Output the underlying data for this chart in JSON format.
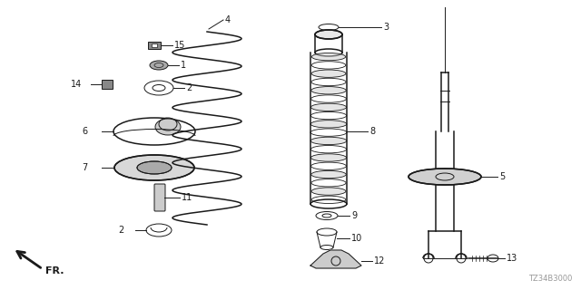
{
  "part_number": "TZ34B3000",
  "background_color": "#ffffff",
  "line_color": "#1a1a1a",
  "fig_width": 6.4,
  "fig_height": 3.2,
  "dpi": 100
}
